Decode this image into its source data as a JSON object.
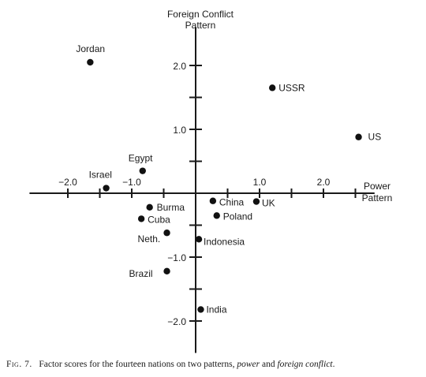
{
  "chart_data": {
    "type": "scatter",
    "y_axis_label": [
      "Foreign Conflict",
      "Pattern"
    ],
    "x_axis_label": [
      "Power",
      "Pattern"
    ],
    "xlim": [
      -2.6,
      2.8
    ],
    "ylim": [
      -2.5,
      2.6
    ],
    "x_ticks": [
      -2.0,
      -1.5,
      -1.0,
      -0.5,
      0.5,
      1.0,
      1.5,
      2.0,
      2.5
    ],
    "y_ticks": [
      -2.0,
      -1.5,
      -1.0,
      -0.5,
      0.5,
      1.0,
      1.5,
      2.0
    ],
    "x_tick_labels": [
      {
        "value": -2.0,
        "text": "−2.0"
      },
      {
        "value": -1.0,
        "text": "−1.0"
      },
      {
        "value": 1.0,
        "text": "1.0"
      },
      {
        "value": 2.0,
        "text": "2.0"
      }
    ],
    "y_tick_labels": [
      {
        "value": 2.0,
        "text": "2.0"
      },
      {
        "value": 1.0,
        "text": "1.0"
      },
      {
        "value": -1.0,
        "text": "−1.0"
      },
      {
        "value": -2.0,
        "text": "−2.0"
      }
    ],
    "points": [
      {
        "name": "Jordan",
        "x": -1.65,
        "y": 2.05
      },
      {
        "name": "USSR",
        "x": 1.2,
        "y": 1.65
      },
      {
        "name": "US",
        "x": 2.55,
        "y": 0.88
      },
      {
        "name": "Egypt",
        "x": -0.83,
        "y": 0.35
      },
      {
        "name": "Israel",
        "x": -1.4,
        "y": 0.08
      },
      {
        "name": "China",
        "x": 0.27,
        "y": -0.12
      },
      {
        "name": "UK",
        "x": 0.95,
        "y": -0.13
      },
      {
        "name": "Burma",
        "x": -0.72,
        "y": -0.22
      },
      {
        "name": "Poland",
        "x": 0.33,
        "y": -0.35
      },
      {
        "name": "Cuba",
        "x": -0.85,
        "y": -0.4
      },
      {
        "name": "Neth.",
        "x": -0.45,
        "y": -0.62
      },
      {
        "name": "Indonesia",
        "x": 0.05,
        "y": -0.72
      },
      {
        "name": "Brazil",
        "x": -0.45,
        "y": -1.22
      },
      {
        "name": "India",
        "x": 0.08,
        "y": -1.82
      }
    ]
  },
  "caption": {
    "fig_label": "Fig. 7.",
    "text_main": "Factor scores for the fourteen nations on two patterns,",
    "term1": "power",
    "conjunction": "and",
    "term2": "foreign conflict",
    "period": "."
  }
}
